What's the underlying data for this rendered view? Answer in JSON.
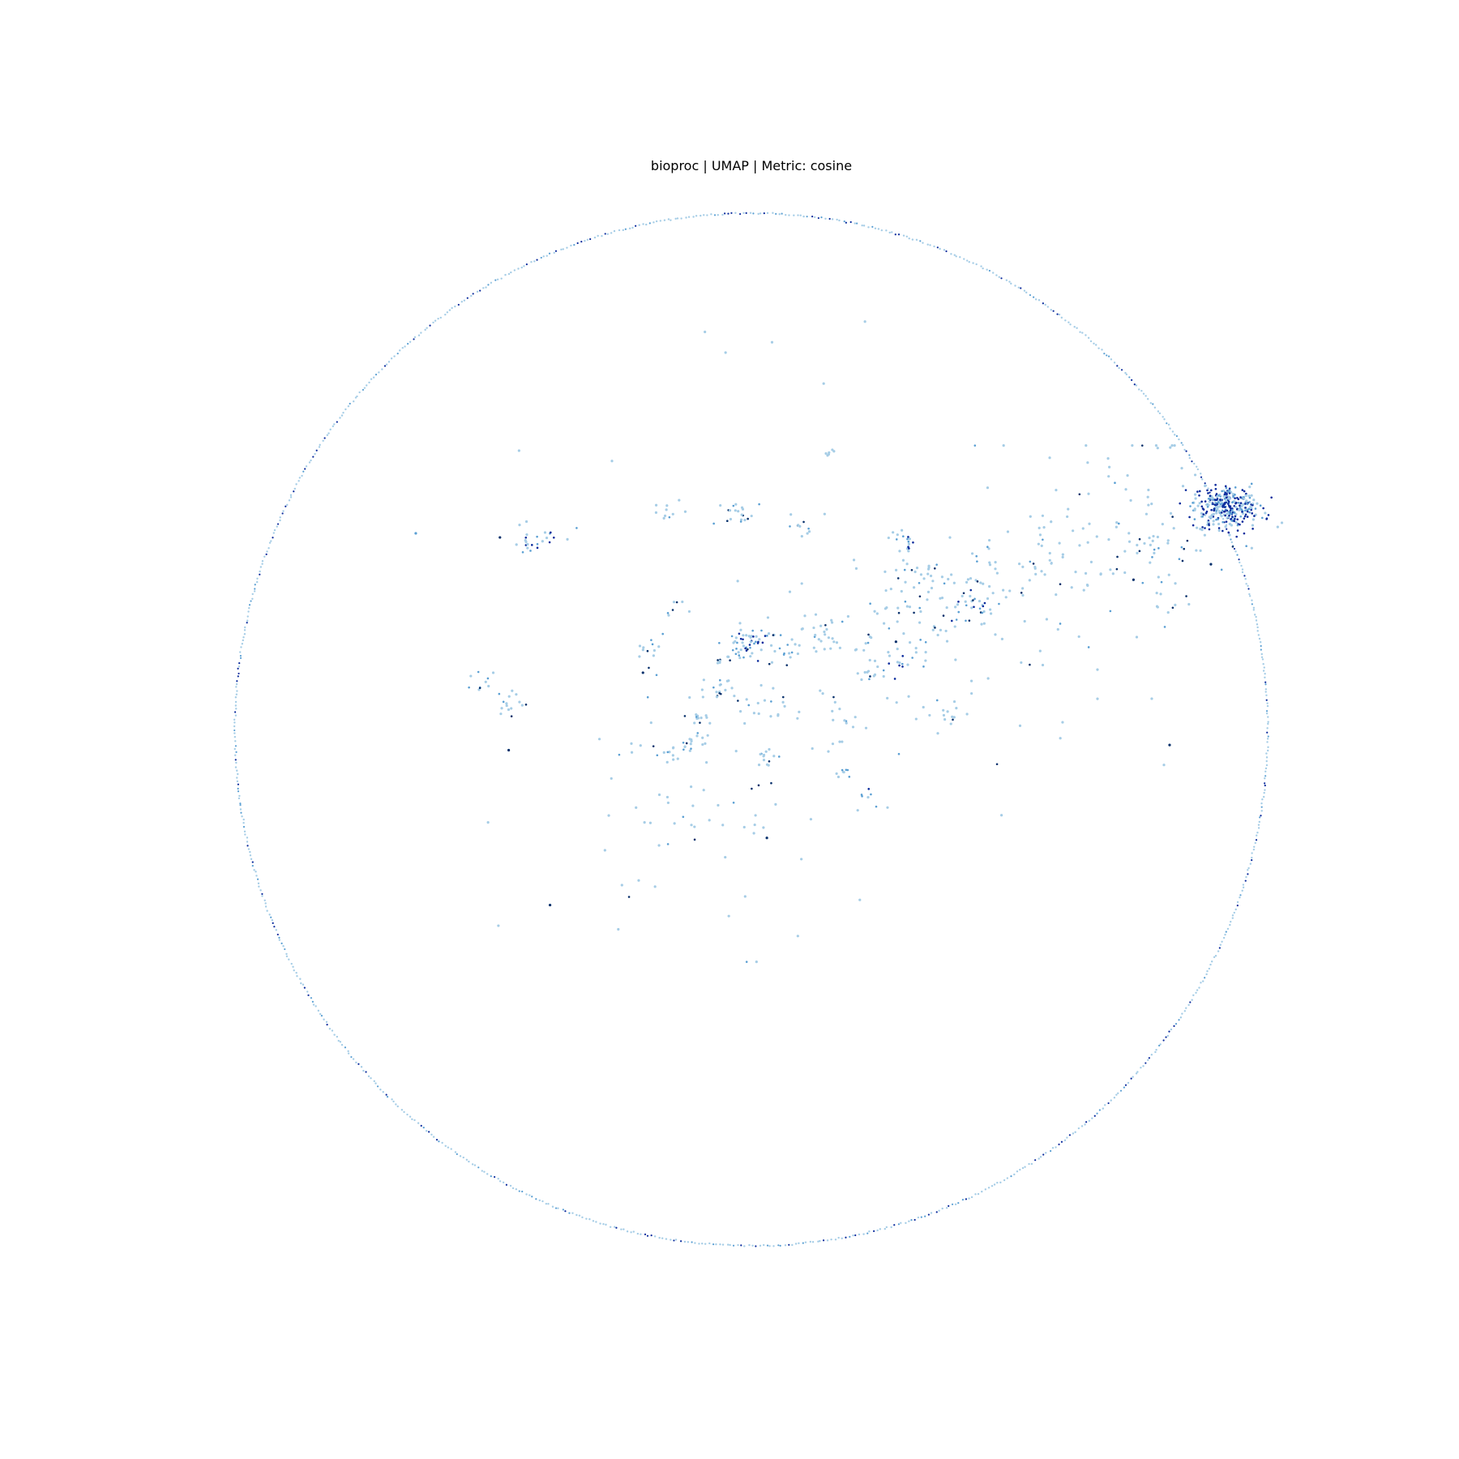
{
  "chart_data": {
    "type": "scatter",
    "title": "bioproc | UMAP | Metric: cosine",
    "xlabel": "",
    "ylabel": "",
    "axes_visible": false,
    "grid": false,
    "legend": "none",
    "colors": {
      "light": "#a6cde6",
      "mid": "#5a9fd3",
      "dark": "#08306b",
      "darkest": "#0a2a9c"
    },
    "x_range": [
      -1.0,
      1.0
    ],
    "y_range": [
      -1.0,
      1.0
    ],
    "boundary_circle": {
      "center": [
        0.0,
        0.0
      ],
      "radius": 1.0,
      "point_count": 900
    },
    "point_size_legend": "none",
    "series": [
      {
        "name": "",
        "clusters": [
          {
            "x": 0.92,
            "y": 0.43,
            "spread": 0.025,
            "count": 320,
            "shade": "dark"
          },
          {
            "x": 0.78,
            "y": 0.38,
            "spread": 0.08,
            "count": 70,
            "shade": "light"
          },
          {
            "x": 0.6,
            "y": 0.33,
            "spread": 0.05,
            "count": 30,
            "shade": "light"
          },
          {
            "x": 0.45,
            "y": 0.28,
            "spread": 0.05,
            "count": 30,
            "shade": "light"
          },
          {
            "x": 0.3,
            "y": 0.22,
            "spread": 0.06,
            "count": 40,
            "shade": "light"
          },
          {
            "x": 0.18,
            "y": 0.15,
            "spread": 0.05,
            "count": 25,
            "shade": "light"
          },
          {
            "x": 0.05,
            "y": 0.16,
            "spread": 0.02,
            "count": 18,
            "shade": "light"
          },
          {
            "x": -0.01,
            "y": 0.17,
            "spread": 0.018,
            "count": 45,
            "shade": "mid"
          },
          {
            "x": -0.06,
            "y": 0.08,
            "spread": 0.015,
            "count": 18,
            "shade": "light"
          },
          {
            "x": -0.1,
            "y": 0.02,
            "spread": 0.01,
            "count": 10,
            "shade": "light"
          },
          {
            "x": -0.12,
            "y": -0.03,
            "spread": 0.012,
            "count": 15,
            "shade": "light"
          },
          {
            "x": -0.03,
            "y": 0.42,
            "spread": 0.015,
            "count": 20,
            "shade": "light"
          },
          {
            "x": 0.1,
            "y": 0.39,
            "spread": 0.012,
            "count": 10,
            "shade": "light"
          },
          {
            "x": 0.14,
            "y": 0.18,
            "spread": 0.02,
            "count": 20,
            "shade": "light"
          },
          {
            "x": 0.3,
            "y": 0.37,
            "spread": 0.012,
            "count": 15,
            "shade": "mid"
          },
          {
            "x": -0.48,
            "y": 0.05,
            "spread": 0.02,
            "count": 15,
            "shade": "light"
          },
          {
            "x": -0.52,
            "y": 0.09,
            "spread": 0.015,
            "count": 10,
            "shade": "light"
          },
          {
            "x": -0.2,
            "y": 0.16,
            "spread": 0.015,
            "count": 12,
            "shade": "light"
          },
          {
            "x": 0.18,
            "y": -0.08,
            "spread": 0.008,
            "count": 8,
            "shade": "light"
          },
          {
            "x": 0.34,
            "y": 0.31,
            "spread": 0.02,
            "count": 12,
            "shade": "light"
          },
          {
            "x": -0.41,
            "y": 0.37,
            "spread": 0.025,
            "count": 25,
            "shade": "mid"
          },
          {
            "x": -0.16,
            "y": 0.42,
            "spread": 0.012,
            "count": 10,
            "shade": "light"
          },
          {
            "x": 0.15,
            "y": 0.54,
            "spread": 0.005,
            "count": 6,
            "shade": "mid"
          },
          {
            "x": -0.06,
            "y": 0.14,
            "spread": 0.01,
            "count": 8,
            "shade": "light"
          },
          {
            "x": -0.16,
            "y": -0.05,
            "spread": 0.012,
            "count": 10,
            "shade": "light"
          },
          {
            "x": 0.04,
            "y": 0.05,
            "spread": 0.02,
            "count": 10,
            "shade": "light"
          },
          {
            "x": 0.38,
            "y": 0.02,
            "spread": 0.02,
            "count": 10,
            "shade": "light"
          },
          {
            "x": 0.42,
            "y": 0.24,
            "spread": 0.02,
            "count": 20,
            "shade": "mid"
          },
          {
            "x": 0.28,
            "y": 0.13,
            "spread": 0.015,
            "count": 10,
            "shade": "mid"
          },
          {
            "x": 0.2,
            "y": 0.01,
            "spread": 0.01,
            "count": 5,
            "shade": "mid"
          },
          {
            "x": -0.15,
            "y": 0.24,
            "spread": 0.01,
            "count": 6,
            "shade": "light"
          },
          {
            "x": 0.22,
            "y": -0.13,
            "spread": 0.01,
            "count": 6,
            "shade": "mid"
          },
          {
            "x": 0.03,
            "y": -0.06,
            "spread": 0.012,
            "count": 10,
            "shade": "light"
          },
          {
            "x": 0.24,
            "y": 0.11,
            "spread": 0.012,
            "count": 8,
            "shade": "light"
          }
        ],
        "sparse_field": {
          "x_range": [
            -0.3,
            0.85
          ],
          "y_range": [
            -0.45,
            0.55
          ],
          "count": 220,
          "shade": "light"
        },
        "isolated_points": [
          {
            "x": -0.487,
            "y": 0.372,
            "shade": "dark"
          },
          {
            "x": -0.39,
            "y": -0.34,
            "shade": "dark"
          },
          {
            "x": -0.21,
            "y": 0.11,
            "shade": "dark"
          },
          {
            "x": 0.81,
            "y": -0.03,
            "shade": "dark"
          },
          {
            "x": 0.89,
            "y": 0.32,
            "shade": "dark"
          },
          {
            "x": 0.74,
            "y": 0.29,
            "shade": "dark"
          },
          {
            "x": -0.65,
            "y": 0.38,
            "shade": "mid"
          },
          {
            "x": -0.47,
            "y": -0.04,
            "shade": "dark"
          },
          {
            "x": 0.28,
            "y": 0.17,
            "shade": "dark"
          },
          {
            "x": 0.03,
            "y": -0.21,
            "shade": "dark"
          },
          {
            "x": -0.51,
            "y": -0.18,
            "shade": "light"
          },
          {
            "x": -0.49,
            "y": -0.38,
            "shade": "light"
          },
          {
            "x": 0.09,
            "y": -0.4,
            "shade": "light"
          },
          {
            "x": 0.21,
            "y": -0.33,
            "shade": "light"
          },
          {
            "x": -0.05,
            "y": 0.73,
            "shade": "light"
          },
          {
            "x": 0.22,
            "y": 0.79,
            "shade": "light"
          },
          {
            "x": 0.14,
            "y": 0.67,
            "shade": "light"
          },
          {
            "x": -0.09,
            "y": 0.77,
            "shade": "light"
          },
          {
            "x": 0.04,
            "y": 0.75,
            "shade": "light"
          },
          {
            "x": -0.45,
            "y": 0.54,
            "shade": "light"
          },
          {
            "x": -0.27,
            "y": 0.52,
            "shade": "light"
          }
        ]
      }
    ]
  }
}
